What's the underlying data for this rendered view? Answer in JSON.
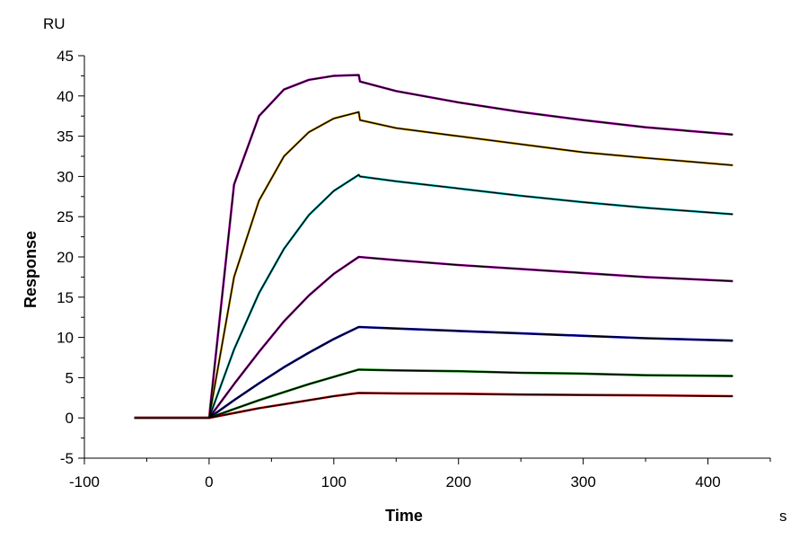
{
  "chart_data": {
    "type": "line",
    "xlabel": "Time",
    "ylabel": "Response",
    "x_unit": "s",
    "y_unit": "RU",
    "xlim": [
      -100,
      450
    ],
    "ylim": [
      -5,
      45
    ],
    "x_ticks": [
      -100,
      0,
      100,
      200,
      300,
      400
    ],
    "y_ticks": [
      -5,
      0,
      5,
      10,
      15,
      20,
      25,
      30,
      35,
      40,
      45
    ],
    "grid": false,
    "legend": "none",
    "association_end": 120,
    "series": [
      {
        "color": "#c000c0",
        "fit_color": "#000000",
        "values": [
          [
            -60,
            0
          ],
          [
            0,
            0
          ],
          [
            20,
            29
          ],
          [
            40,
            37.5
          ],
          [
            60,
            40.8
          ],
          [
            80,
            42
          ],
          [
            100,
            42.5
          ],
          [
            120,
            42.6
          ],
          [
            121,
            41.8
          ],
          [
            150,
            40.6
          ],
          [
            200,
            39.2
          ],
          [
            250,
            38.0
          ],
          [
            300,
            37.0
          ],
          [
            350,
            36.1
          ],
          [
            420,
            35.2
          ]
        ]
      },
      {
        "color": "#e0a000",
        "fit_color": "#000000",
        "values": [
          [
            -60,
            0
          ],
          [
            0,
            0
          ],
          [
            20,
            17.5
          ],
          [
            40,
            27
          ],
          [
            60,
            32.5
          ],
          [
            80,
            35.5
          ],
          [
            100,
            37.2
          ],
          [
            120,
            38.0
          ],
          [
            121,
            37.0
          ],
          [
            150,
            36.0
          ],
          [
            200,
            35.0
          ],
          [
            250,
            34.0
          ],
          [
            300,
            33.0
          ],
          [
            350,
            32.3
          ],
          [
            420,
            31.4
          ]
        ]
      },
      {
        "color": "#00c0c0",
        "fit_color": "#000000",
        "values": [
          [
            -60,
            0
          ],
          [
            0,
            0
          ],
          [
            20,
            8.5
          ],
          [
            40,
            15.5
          ],
          [
            60,
            21
          ],
          [
            80,
            25.2
          ],
          [
            100,
            28.2
          ],
          [
            120,
            30.2
          ],
          [
            121,
            30.0
          ],
          [
            150,
            29.4
          ],
          [
            200,
            28.5
          ],
          [
            250,
            27.6
          ],
          [
            300,
            26.8
          ],
          [
            350,
            26.1
          ],
          [
            420,
            25.3
          ]
        ]
      },
      {
        "color": "#c000c0",
        "fit_color": "#000000",
        "values": [
          [
            -60,
            0
          ],
          [
            0,
            0
          ],
          [
            20,
            4.2
          ],
          [
            40,
            8.2
          ],
          [
            60,
            12
          ],
          [
            80,
            15.2
          ],
          [
            100,
            17.9
          ],
          [
            120,
            20.0
          ],
          [
            150,
            19.6
          ],
          [
            200,
            19.0
          ],
          [
            250,
            18.5
          ],
          [
            300,
            18.0
          ],
          [
            350,
            17.5
          ],
          [
            420,
            17.0
          ]
        ]
      },
      {
        "color": "#0000c0",
        "fit_color": "#000000",
        "values": [
          [
            -60,
            0
          ],
          [
            0,
            0
          ],
          [
            20,
            2.2
          ],
          [
            40,
            4.3
          ],
          [
            60,
            6.3
          ],
          [
            80,
            8.1
          ],
          [
            100,
            9.8
          ],
          [
            120,
            11.3
          ],
          [
            150,
            11.1
          ],
          [
            200,
            10.8
          ],
          [
            250,
            10.5
          ],
          [
            300,
            10.2
          ],
          [
            350,
            9.9
          ],
          [
            420,
            9.6
          ]
        ]
      },
      {
        "color": "#008000",
        "fit_color": "#000000",
        "values": [
          [
            -60,
            0
          ],
          [
            0,
            0
          ],
          [
            20,
            1.1
          ],
          [
            40,
            2.2
          ],
          [
            60,
            3.2
          ],
          [
            80,
            4.2
          ],
          [
            100,
            5.1
          ],
          [
            120,
            6.0
          ],
          [
            150,
            5.9
          ],
          [
            200,
            5.8
          ],
          [
            250,
            5.6
          ],
          [
            300,
            5.5
          ],
          [
            350,
            5.3
          ],
          [
            420,
            5.2
          ]
        ]
      },
      {
        "color": "#e00000",
        "fit_color": "#000000",
        "values": [
          [
            -60,
            0
          ],
          [
            0,
            0
          ],
          [
            20,
            0.6
          ],
          [
            40,
            1.2
          ],
          [
            60,
            1.7
          ],
          [
            80,
            2.2
          ],
          [
            100,
            2.7
          ],
          [
            120,
            3.1
          ],
          [
            150,
            3.05
          ],
          [
            200,
            3.0
          ],
          [
            250,
            2.9
          ],
          [
            300,
            2.85
          ],
          [
            350,
            2.8
          ],
          [
            420,
            2.7
          ]
        ]
      }
    ]
  }
}
